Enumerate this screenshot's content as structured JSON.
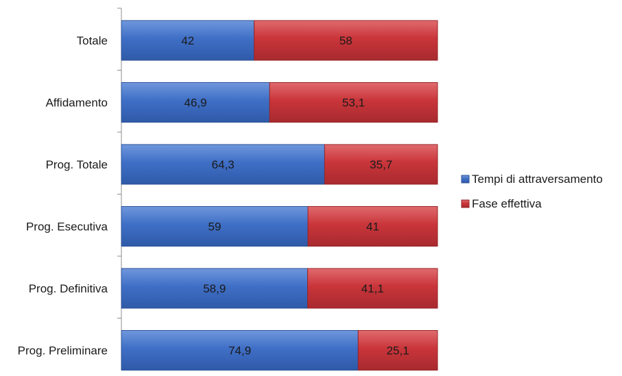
{
  "chart_data": {
    "type": "bar",
    "orientation": "horizontal",
    "stacked": "percent",
    "categories": [
      "Totale",
      "Affidamento",
      "Prog. Totale",
      "Prog. Esecutiva",
      "Prog. Definitiva",
      "Prog. Preliminare"
    ],
    "series": [
      {
        "name": "Tempi di attraversamento",
        "color": "#3f6fc6",
        "values": [
          42,
          46.9,
          64.3,
          59,
          58.9,
          74.9
        ],
        "labels": [
          "42",
          "46,9",
          "64,3",
          "59",
          "58,9",
          "74,9"
        ]
      },
      {
        "name": "Fase effettiva",
        "color": "#c9353a",
        "values": [
          58,
          53.1,
          35.7,
          41,
          41.1,
          25.1
        ],
        "labels": [
          "58",
          "53,1",
          "35,7",
          "41",
          "41,1",
          "25,1"
        ]
      }
    ],
    "xlim": [
      0,
      100
    ],
    "grid": false,
    "legend_position": "right"
  }
}
